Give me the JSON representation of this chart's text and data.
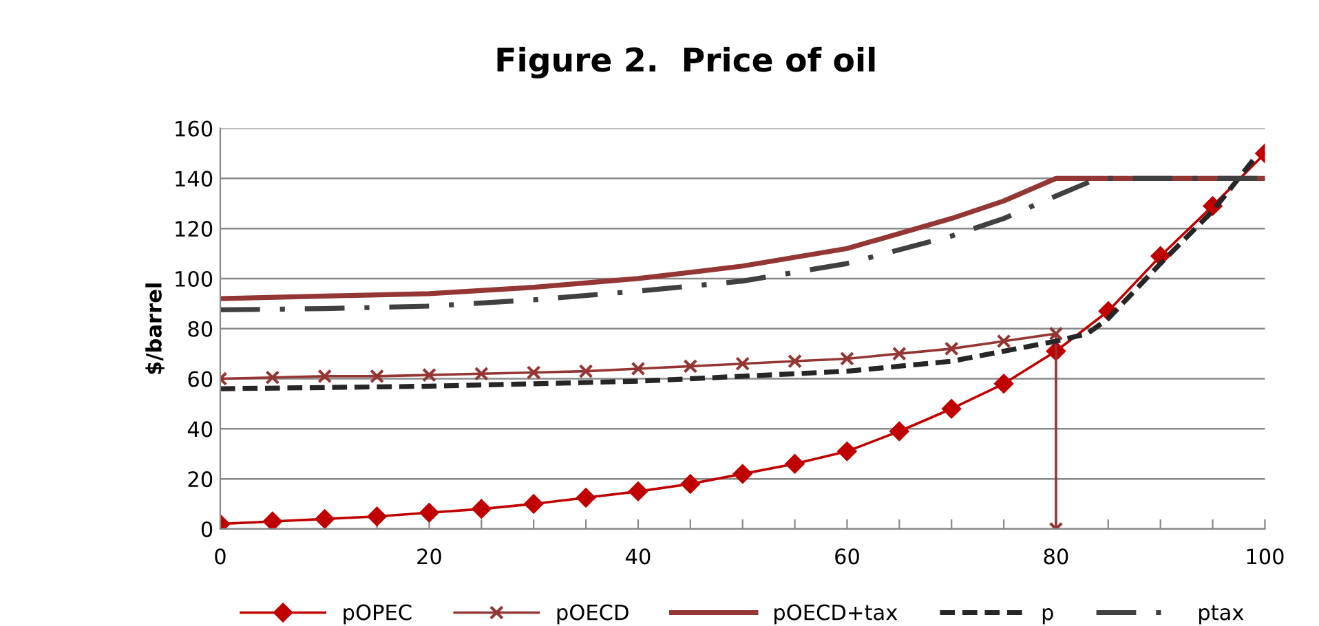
{
  "chart_data": {
    "type": "line",
    "title": "Figure 2.  Price of oil",
    "ylabel": "$/barrel",
    "xlim": [
      0,
      100
    ],
    "ylim": [
      0,
      160
    ],
    "xticks": [
      0,
      {
        "value": 5,
        "label": null
      },
      {
        "value": 10,
        "label": null
      },
      {
        "value": 15,
        "label": null
      },
      20,
      {
        "value": 25,
        "label": null
      },
      {
        "value": 30,
        "label": null
      },
      {
        "value": 35,
        "label": null
      },
      40,
      {
        "value": 45,
        "label": null
      },
      {
        "value": 50,
        "label": null
      },
      {
        "value": 55,
        "label": null
      },
      60,
      {
        "value": 65,
        "label": null
      },
      {
        "value": 70,
        "label": null
      },
      {
        "value": 75,
        "label": null
      },
      80,
      {
        "value": 85,
        "label": null
      },
      {
        "value": 90,
        "label": null
      },
      {
        "value": 95,
        "label": null
      },
      100
    ],
    "yticks": [
      0,
      20,
      40,
      60,
      80,
      100,
      120,
      140,
      160
    ],
    "grid": "y",
    "legend": "bottom",
    "series": [
      {
        "name": "pOPEC",
        "color": "#c00000",
        "marker": "diamond",
        "line_style": "solid",
        "x": [
          0,
          5,
          10,
          15,
          20,
          25,
          30,
          35,
          40,
          45,
          50,
          55,
          60,
          65,
          70,
          75,
          80,
          85,
          90,
          95,
          100
        ],
        "values": [
          2,
          3,
          4,
          5,
          6.5,
          8,
          10,
          12.5,
          15,
          18,
          22,
          26,
          31,
          39,
          48,
          58,
          71,
          87,
          109,
          129,
          150
        ]
      },
      {
        "name": "pOECD",
        "color": "#943634",
        "marker": "cross",
        "line_style": "solid",
        "x": [
          0,
          5,
          10,
          15,
          20,
          25,
          30,
          35,
          40,
          45,
          50,
          55,
          60,
          65,
          70,
          75,
          80,
          80
        ],
        "values": [
          60,
          60.5,
          61,
          61,
          61.5,
          62,
          62.5,
          63,
          64,
          65,
          66,
          67,
          68,
          70,
          72,
          75,
          78,
          0
        ]
      },
      {
        "name": "pOECD+tax",
        "color": "#943634",
        "marker": "none",
        "line_style": "solid",
        "x": [
          0,
          10,
          20,
          30,
          40,
          50,
          60,
          70,
          75,
          80,
          90,
          100
        ],
        "values": [
          92,
          93,
          94,
          96.5,
          100,
          105,
          112,
          124,
          131,
          140,
          140,
          140
        ]
      },
      {
        "name": "p",
        "color": "#262626",
        "marker": "none",
        "line_style": "dashed",
        "x": [
          0,
          10,
          20,
          30,
          40,
          50,
          60,
          70,
          80,
          83,
          85,
          90,
          95,
          99
        ],
        "values": [
          56,
          56.5,
          57,
          58,
          59,
          61,
          63,
          67,
          75,
          78,
          84,
          106,
          127,
          148
        ]
      },
      {
        "name": "ptax",
        "color": "#404040",
        "marker": "none",
        "line_style": "dashdot",
        "x": [
          0,
          10,
          20,
          30,
          40,
          50,
          60,
          70,
          75,
          80,
          84,
          90,
          100
        ],
        "values": [
          87.5,
          88,
          89,
          91.5,
          95,
          99,
          106,
          117,
          124,
          133,
          140,
          140,
          140
        ]
      }
    ]
  }
}
